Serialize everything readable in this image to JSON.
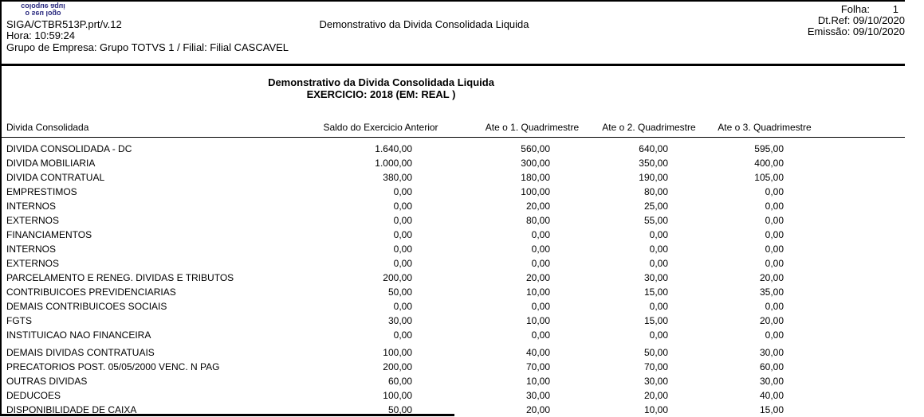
{
  "colors": {
    "logo_text": "#2a2a7f",
    "rule": "#000000"
  },
  "logo": {
    "line1": "coloque aqui",
    "line2": "o seu logo"
  },
  "header": {
    "program": "SIGA/CTBR513P.prt/v.12",
    "title": "Demonstrativo da Divida Consolidada Liquida",
    "hora_line": "Hora: 10:59:24",
    "grupo_line": "Grupo de Empresa: Grupo TOTVS 1 / Filial: Filial CASCAVEL",
    "folha_label": "Folha:",
    "folha_value": "1",
    "dtref_line": "Dt.Ref: 09/10/2020",
    "emissao_line": "Emissão: 09/10/2020"
  },
  "section": {
    "title": "Demonstrativo da Divida Consolidada Liquida",
    "subtitle": "EXERCICIO: 2018 (EM: REAL )"
  },
  "table": {
    "columns": [
      "Divida Consolidada",
      "Saldo do Exercicio Anterior",
      "Ate o 1. Quadrimestre",
      "Ate o 2. Quadrimestre",
      "Ate o 3. Quadrimestre"
    ],
    "rows": [
      {
        "label": "DIVIDA CONSOLIDADA - DC",
        "values": [
          "1.640,00",
          "560,00",
          "640,00",
          "595,00"
        ]
      },
      {
        "label": "DIVIDA MOBILIARIA",
        "values": [
          "1.000,00",
          "300,00",
          "350,00",
          "400,00"
        ]
      },
      {
        "label": "DIVIDA CONTRATUAL",
        "values": [
          "380,00",
          "180,00",
          "190,00",
          "105,00"
        ]
      },
      {
        "label": "EMPRESTIMOS",
        "values": [
          "0,00",
          "100,00",
          "80,00",
          "0,00"
        ]
      },
      {
        "label": "INTERNOS",
        "values": [
          "0,00",
          "20,00",
          "25,00",
          "0,00"
        ]
      },
      {
        "label": "EXTERNOS",
        "values": [
          "0,00",
          "80,00",
          "55,00",
          "0,00"
        ]
      },
      {
        "label": "FINANCIAMENTOS",
        "values": [
          "0,00",
          "0,00",
          "0,00",
          "0,00"
        ]
      },
      {
        "label": "INTERNOS",
        "values": [
          "0,00",
          "0,00",
          "0,00",
          "0,00"
        ]
      },
      {
        "label": "EXTERNOS",
        "values": [
          "0,00",
          "0,00",
          "0,00",
          "0,00"
        ]
      },
      {
        "label": "PARCELAMENTO E RENEG. DIVIDAS E TRIBUTOS",
        "values": [
          "200,00",
          "20,00",
          "30,00",
          "20,00"
        ]
      },
      {
        "label": "CONTRIBUICOES PREVIDENCIARIAS",
        "values": [
          "50,00",
          "10,00",
          "15,00",
          "35,00"
        ]
      },
      {
        "label": "DEMAIS CONTRIBUICOES SOCIAIS",
        "values": [
          "0,00",
          "0,00",
          "0,00",
          "0,00"
        ]
      },
      {
        "label": "FGTS",
        "values": [
          "30,00",
          "10,00",
          "15,00",
          "20,00"
        ]
      },
      {
        "label": "INSTITUICAO NAO FINANCEIRA",
        "values": [
          "0,00",
          "0,00",
          "0,00",
          "0,00"
        ]
      },
      {
        "label": "DEMAIS DIVIDAS CONTRATUAIS",
        "values": [
          "100,00",
          "40,00",
          "50,00",
          "30,00"
        ],
        "gap_before": true
      },
      {
        "label": "PRECATORIOS POST. 05/05/2000 VENC. N PAG",
        "values": [
          "200,00",
          "70,00",
          "70,00",
          "60,00"
        ]
      },
      {
        "label": "OUTRAS DIVIDAS",
        "values": [
          "60,00",
          "10,00",
          "30,00",
          "30,00"
        ]
      },
      {
        "label": "DEDUCOES",
        "values": [
          "100,00",
          "30,00",
          "20,00",
          "40,00"
        ]
      },
      {
        "label": "DISPONIBILIDADE DE CAIXA",
        "values": [
          "50,00",
          "20,00",
          "10,00",
          "15,00"
        ]
      }
    ]
  }
}
